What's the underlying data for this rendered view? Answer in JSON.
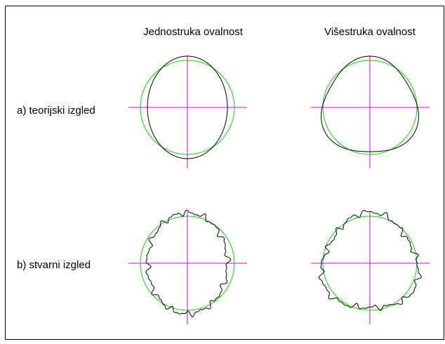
{
  "columns": [
    "Jednostruka ovalnost",
    "Višestruka ovalnost"
  ],
  "rows": [
    "a) teorijski izgled",
    "b) stvarni izgled"
  ]
}
